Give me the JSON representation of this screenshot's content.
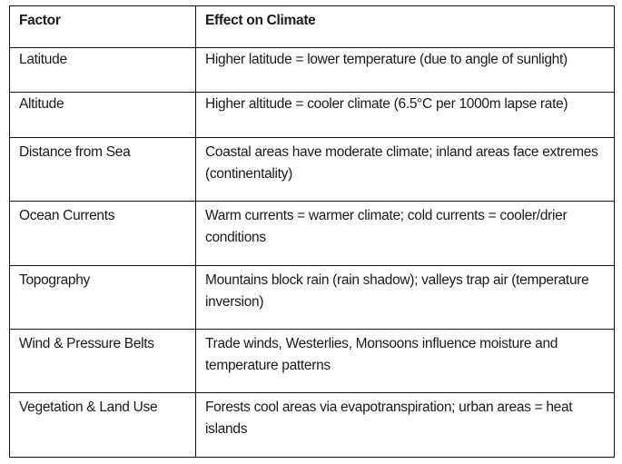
{
  "table": {
    "headers": {
      "factor": "Factor",
      "effect": "Effect on Climate"
    },
    "rows": [
      {
        "factor": "Latitude",
        "effect": "Higher latitude = lower temperature (due to angle of sunlight)"
      },
      {
        "factor": "Altitude",
        "effect": "Higher altitude = cooler climate (6.5°C per 1000m lapse rate)"
      },
      {
        "factor": "Distance from Sea",
        "effect": "Coastal areas have moderate climate; inland areas face extremes (continentality)"
      },
      {
        "factor": "Ocean Currents",
        "effect": "Warm currents = warmer climate; cold currents = cooler/drier conditions"
      },
      {
        "factor": "Topography",
        "effect": "Mountains block rain (rain shadow); valleys trap air (temperature inversion)"
      },
      {
        "factor": "Wind & Pressure Belts",
        "effect": "Trade winds, Westerlies, Monsoons influence moisture and temperature patterns"
      },
      {
        "factor": "Vegetation & Land Use",
        "effect": "Forests cool areas via evapotranspiration; urban areas = heat islands"
      }
    ]
  }
}
